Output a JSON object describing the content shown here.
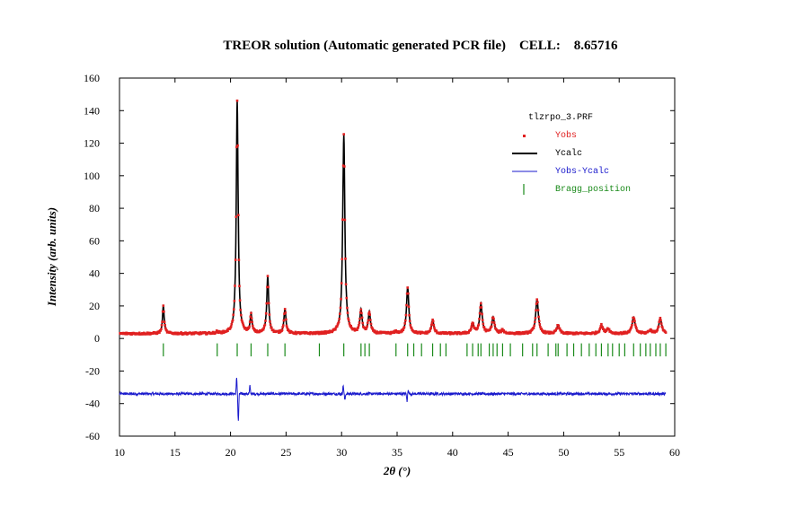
{
  "chart_data": {
    "type": "line",
    "title": "TREOR solution (Automatic generated PCR file)    CELL:    8.65716",
    "xlabel": "2θ (°)",
    "ylabel": "Intensity (arb. units)",
    "xlim": [
      10,
      60
    ],
    "ylim": [
      -60,
      160
    ],
    "x_ticks": [
      10,
      15,
      20,
      25,
      30,
      35,
      40,
      45,
      50,
      55,
      60
    ],
    "y_ticks": [
      -60,
      -40,
      -20,
      0,
      20,
      40,
      60,
      80,
      100,
      120,
      140,
      160
    ],
    "legend_title": "tlzrpo_3.PRF",
    "legend_position": "top-right",
    "series": [
      {
        "name": "Yobs",
        "color": "#e02020",
        "style": "points"
      },
      {
        "name": "Ycalc",
        "color": "#000000",
        "style": "line"
      },
      {
        "name": "Yobs-Ycalc",
        "color": "#1a1acc",
        "style": "line"
      },
      {
        "name": "Bragg_position",
        "color": "#1a8a1a",
        "style": "ticks"
      }
    ],
    "background": 3,
    "diff_offset": -34,
    "peaks": [
      {
        "x": 13.95,
        "y": 20
      },
      {
        "x": 18.8,
        "y": 4
      },
      {
        "x": 20.6,
        "y": 146
      },
      {
        "x": 21.85,
        "y": 14
      },
      {
        "x": 23.35,
        "y": 38
      },
      {
        "x": 24.9,
        "y": 18
      },
      {
        "x": 28.0,
        "y": 3
      },
      {
        "x": 30.2,
        "y": 125
      },
      {
        "x": 31.75,
        "y": 17
      },
      {
        "x": 32.5,
        "y": 16
      },
      {
        "x": 34.9,
        "y": 4
      },
      {
        "x": 35.95,
        "y": 31
      },
      {
        "x": 38.2,
        "y": 11
      },
      {
        "x": 39.4,
        "y": 3
      },
      {
        "x": 41.8,
        "y": 9
      },
      {
        "x": 42.55,
        "y": 21
      },
      {
        "x": 43.65,
        "y": 13
      },
      {
        "x": 44.5,
        "y": 5
      },
      {
        "x": 47.6,
        "y": 24
      },
      {
        "x": 49.5,
        "y": 8
      },
      {
        "x": 51.2,
        "y": 3
      },
      {
        "x": 53.4,
        "y": 8
      },
      {
        "x": 54.0,
        "y": 6
      },
      {
        "x": 56.3,
        "y": 13
      },
      {
        "x": 57.8,
        "y": 5
      },
      {
        "x": 58.7,
        "y": 12
      }
    ],
    "diff_features": [
      {
        "x": 20.55,
        "y": -24
      },
      {
        "x": 20.7,
        "y": -51
      },
      {
        "x": 21.75,
        "y": -29
      },
      {
        "x": 30.15,
        "y": -29
      },
      {
        "x": 30.3,
        "y": -38
      },
      {
        "x": 35.9,
        "y": -39
      },
      {
        "x": 36.0,
        "y": -31
      }
    ],
    "bragg_positions": [
      13.95,
      18.8,
      20.6,
      21.85,
      23.35,
      24.9,
      28.0,
      30.2,
      31.75,
      32.1,
      32.5,
      34.9,
      35.95,
      36.5,
      37.2,
      38.2,
      38.9,
      39.4,
      41.3,
      41.8,
      42.3,
      42.55,
      43.3,
      43.65,
      44.0,
      44.5,
      45.2,
      46.3,
      47.2,
      47.6,
      48.6,
      49.3,
      49.5,
      50.3,
      50.9,
      51.6,
      52.3,
      52.9,
      53.4,
      54.0,
      54.4,
      55.0,
      55.5,
      56.3,
      56.9,
      57.4,
      57.8,
      58.3,
      58.7,
      59.2
    ]
  }
}
